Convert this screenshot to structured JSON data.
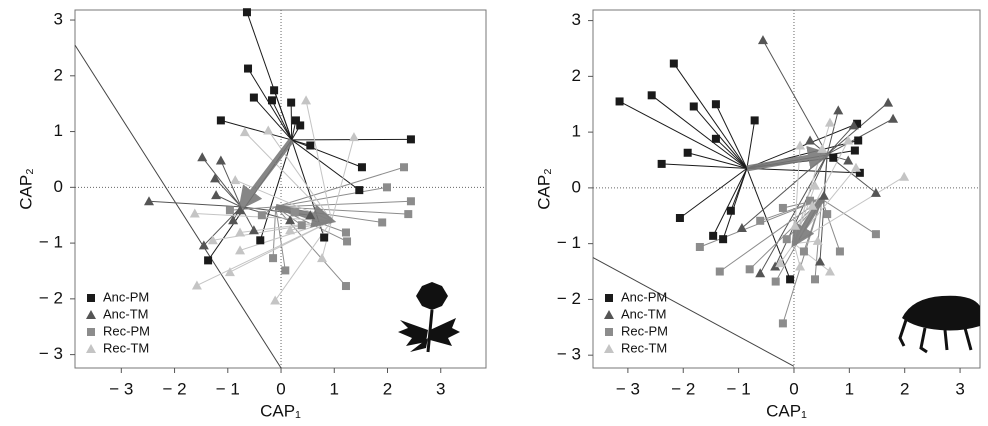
{
  "chart_data": [
    {
      "type": "scatter",
      "xlabel": "CAP₁",
      "ylabel": "CAP₂",
      "xlim": [
        -3.87,
        3.85
      ],
      "ylim": [
        -3.24,
        3.18
      ],
      "xticks": [
        {
          "value": -3,
          "label": "− 3"
        },
        {
          "value": -2,
          "label": "− 2"
        },
        {
          "value": -1,
          "label": "− 1"
        },
        0,
        1,
        2,
        3
      ],
      "yticks": [
        {
          "value": -3,
          "label": "− 3"
        },
        {
          "value": -2,
          "label": "− 2"
        },
        {
          "value": -1,
          "label": "− 1"
        },
        0,
        1,
        2,
        3
      ],
      "zero_lines": true,
      "legend": "lower left",
      "reference_line": {
        "x": [
          -3.87,
          0.0
        ],
        "y": [
          2.55,
          -3.24
        ]
      },
      "series": [
        {
          "name": "Anc-PM",
          "color": "#1a1a1a",
          "marker": "square",
          "center": [
            0.2,
            0.85
          ],
          "x": [
            -0.64,
            -0.62,
            -0.51,
            -0.13,
            -0.17,
            0.19,
            -1.13,
            0.28,
            0.36,
            0.55,
            2.44,
            1.52,
            1.47,
            0.81,
            -1.37,
            -0.39
          ],
          "y": [
            3.14,
            2.13,
            1.61,
            1.74,
            1.56,
            1.52,
            1.2,
            1.2,
            1.11,
            0.75,
            0.86,
            0.36,
            -0.05,
            -0.9,
            -1.31,
            -0.95
          ]
        },
        {
          "name": "Anc-TM",
          "color": "#555555",
          "marker": "triangle",
          "center": [
            -0.75,
            -0.35
          ],
          "x": [
            -2.48,
            -1.48,
            -1.13,
            -1.24,
            -1.22,
            -1.45,
            -0.9,
            -0.77,
            -0.51,
            0.17,
            0.55
          ],
          "y": [
            -0.25,
            0.54,
            0.48,
            0.16,
            -0.14,
            -1.04,
            -0.59,
            -0.41,
            -0.77,
            -0.59,
            -0.5
          ]
        },
        {
          "name": "Rec-PM",
          "color": "#8c8c8c",
          "marker": "square",
          "center": [
            -0.1,
            -0.35
          ],
          "x": [
            1.99,
            2.31,
            2.44,
            2.39,
            1.9,
            1.24,
            1.22,
            1.22,
            0.39,
            0.08,
            -0.15,
            -0.36,
            -0.96,
            0.26
          ],
          "y": [
            0.0,
            0.36,
            -0.25,
            -0.48,
            -0.63,
            -0.97,
            -0.81,
            -1.77,
            -0.68,
            -1.49,
            -1.27,
            -0.5,
            -0.41,
            -0.45
          ]
        },
        {
          "name": "Rec-TM",
          "color": "#c4c4c4",
          "marker": "triangle",
          "center": [
            0.95,
            -0.6
          ],
          "x": [
            0.47,
            1.37,
            -0.68,
            -0.24,
            -0.86,
            -1.62,
            -1.28,
            -0.96,
            -1.58,
            -0.77,
            -0.11,
            0.77,
            0.17,
            -0.77
          ],
          "y": [
            1.56,
            0.9,
            0.99,
            1.02,
            0.13,
            -0.47,
            -0.95,
            -1.52,
            -1.76,
            -1.13,
            -2.03,
            -1.27,
            -0.77,
            -0.81
          ]
        }
      ]
    },
    {
      "type": "scatter",
      "xlabel": "CAP₁",
      "ylabel": "CAP₂",
      "xlim": [
        -3.63,
        3.36
      ],
      "ylim": [
        -3.23,
        3.19
      ],
      "xticks": [
        {
          "value": -3,
          "label": "− 3"
        },
        {
          "value": -2,
          "label": "− 2"
        },
        {
          "value": -1,
          "label": "− 1"
        },
        0,
        1,
        2,
        3
      ],
      "yticks": [
        {
          "value": -3,
          "label": "− 3"
        },
        {
          "value": -2,
          "label": "− 2"
        },
        {
          "value": -1,
          "label": "− 1"
        },
        0,
        1,
        2,
        3
      ],
      "zero_lines": true,
      "legend": "lower left",
      "reference_line": {
        "x": [
          -3.63,
          0.0
        ],
        "y": [
          -1.25,
          -3.2
        ]
      },
      "series": [
        {
          "name": "Anc-PM",
          "color": "#1a1a1a",
          "marker": "square",
          "center": [
            -0.85,
            0.35
          ],
          "x": [
            -3.15,
            -2.57,
            -2.17,
            -1.81,
            -1.41,
            -1.41,
            -2.39,
            -1.92,
            -2.06,
            -1.46,
            -1.28,
            -1.14,
            -0.71,
            0.71,
            1.14,
            1.16,
            1.1,
            1.19,
            -0.07
          ],
          "y": [
            1.55,
            1.66,
            2.23,
            1.46,
            1.5,
            0.88,
            0.43,
            0.63,
            -0.54,
            -0.86,
            -0.92,
            -0.41,
            1.21,
            0.54,
            1.15,
            0.85,
            0.67,
            0.27,
            -1.64
          ]
        },
        {
          "name": "Anc-TM",
          "color": "#555555",
          "marker": "triangle",
          "center": [
            0.6,
            0.6
          ],
          "x": [
            -0.56,
            0.8,
            1.7,
            1.79,
            1.08,
            0.98,
            1.48,
            0.29,
            0.54,
            -0.94,
            -0.61,
            -0.34,
            0.47
          ],
          "y": [
            2.65,
            1.39,
            1.53,
            1.24,
            1.12,
            0.49,
            -0.09,
            0.85,
            -0.14,
            -0.72,
            -1.53,
            -1.41,
            -1.32
          ]
        },
        {
          "name": "Rec-PM",
          "color": "#8c8c8c",
          "marker": "square",
          "center": [
            0.5,
            -0.2
          ],
          "x": [
            1.48,
            -0.2,
            -0.61,
            -0.13,
            -0.8,
            -1.7,
            -1.34,
            -0.2,
            -0.33,
            0.38,
            0.18,
            0.6,
            0.83,
            0.29
          ],
          "y": [
            -0.83,
            -0.36,
            -0.59,
            -0.92,
            -1.46,
            -1.06,
            -1.5,
            -2.43,
            -1.68,
            -1.64,
            -1.14,
            -0.47,
            -1.14,
            -0.23
          ]
        },
        {
          "name": "Rec-TM",
          "color": "#c4c4c4",
          "marker": "triangle",
          "center": [
            0.0,
            -1.0
          ],
          "x": [
            1.99,
            1.12,
            0.98,
            0.65,
            0.51,
            0.11,
            0.38,
            0.02,
            0.43,
            0.65,
            0.11,
            -0.25,
            0.33
          ],
          "y": [
            0.2,
            0.36,
            0.85,
            1.17,
            0.7,
            0.76,
            0.04,
            -0.68,
            -0.95,
            -1.5,
            -1.41,
            -1.35,
            -0.32
          ]
        }
      ]
    }
  ]
}
